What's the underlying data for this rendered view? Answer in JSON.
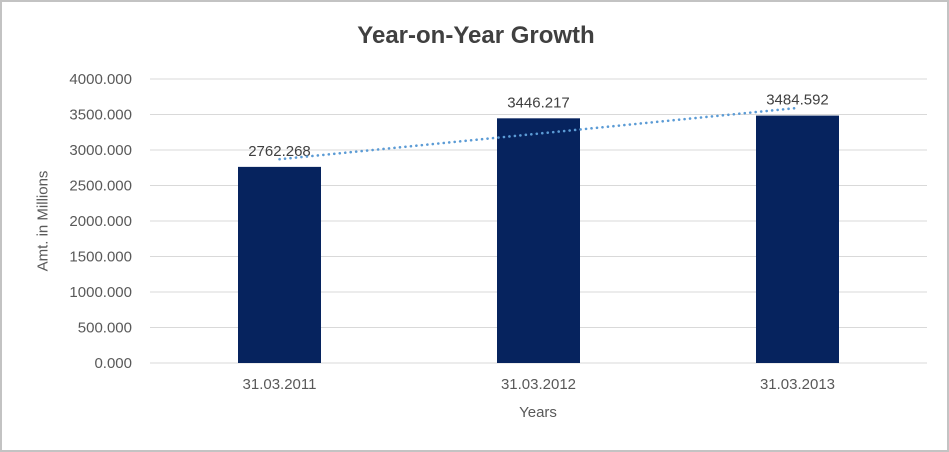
{
  "chart_data": {
    "type": "bar",
    "title": "Year-on-Year Growth",
    "categories": [
      "31.03.2011",
      "31.03.2012",
      "31.03.2013"
    ],
    "values": [
      2762.268,
      3446.217,
      3484.592
    ],
    "data_labels": [
      "2762.268",
      "3446.217",
      "3484.592"
    ],
    "xlabel": "Years",
    "ylabel": "Amt. in Millions",
    "ylim": [
      0,
      4000
    ],
    "ytick_step": 500,
    "ytick_decimals": 3,
    "ytick_labels": [
      "0.000",
      "500.000",
      "1000.000",
      "1500.000",
      "2000.000",
      "2500.000",
      "3000.000",
      "3500.000",
      "4000.000"
    ],
    "grid": true,
    "legend_position": "none",
    "trendline": {
      "type": "linear",
      "style": "dotted"
    },
    "colors": {
      "bar": "#06235E",
      "trendline": "#5B9BD5",
      "gridline": "#D9D9D9",
      "axis_line": "#D9D9D9",
      "tick_text": "#595959",
      "axis_title_text": "#595959",
      "data_label_text": "#404040",
      "title_text": "#404040",
      "frame_border": "#C3C3C3",
      "background": "#FFFFFF"
    }
  }
}
